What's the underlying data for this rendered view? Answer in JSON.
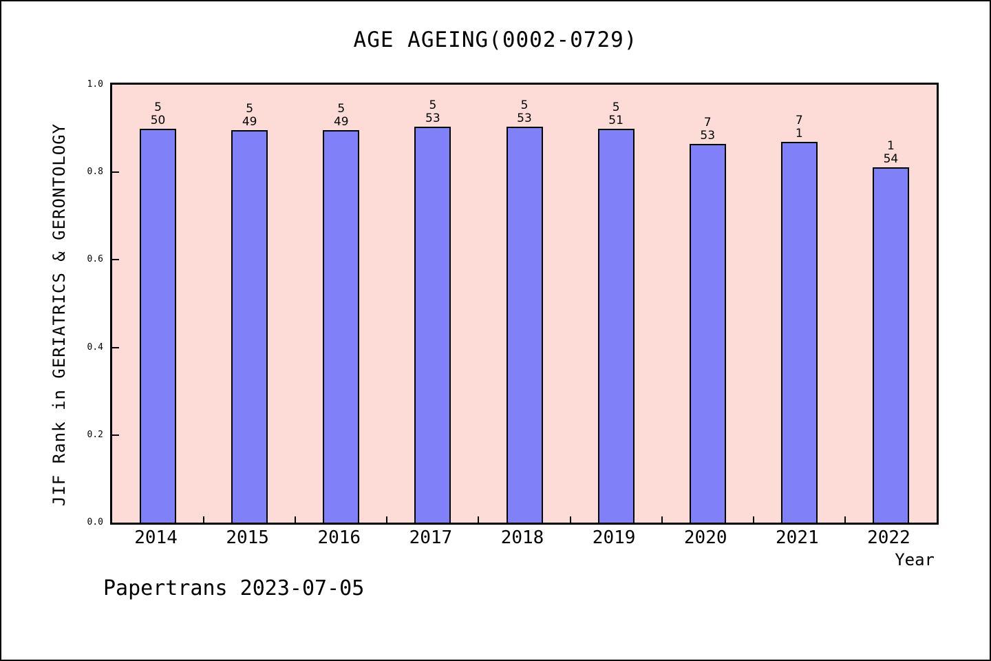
{
  "footer": "Papertrans 2023-07-05",
  "chart_data": {
    "type": "bar",
    "title": "AGE AGEING(0002-0729)",
    "xlabel": "Year",
    "ylabel": "JIF Rank in GERIATRICS & GERONTOLOGY",
    "categories": [
      "2014",
      "2015",
      "2016",
      "2017",
      "2018",
      "2019",
      "2020",
      "2021",
      "2022"
    ],
    "values": [
      0.899,
      0.896,
      0.896,
      0.904,
      0.904,
      0.9,
      0.864,
      0.869,
      0.812
    ],
    "bar_labels": [
      [
        "5",
        "50"
      ],
      [
        "5",
        "49"
      ],
      [
        "5",
        "49"
      ],
      [
        "5",
        "53"
      ],
      [
        "5",
        "53"
      ],
      [
        "5",
        "51"
      ],
      [
        "7",
        "53"
      ],
      [
        "7",
        "1"
      ],
      [
        "1",
        "54"
      ]
    ],
    "yticks": [
      0.0,
      0.2,
      0.4,
      0.6,
      0.8,
      1.0
    ],
    "ytick_labels": [
      "0.0",
      "0.2",
      "0.4",
      "0.6",
      "0.8",
      "1.0"
    ],
    "ylim": [
      0,
      1
    ],
    "grid": false,
    "legend": "none",
    "colors": {
      "bar_fill": "#8080f8",
      "bar_border": "#000000",
      "plot_bg": "#fddcd8",
      "frame": "#000000",
      "text": "#000000"
    }
  }
}
